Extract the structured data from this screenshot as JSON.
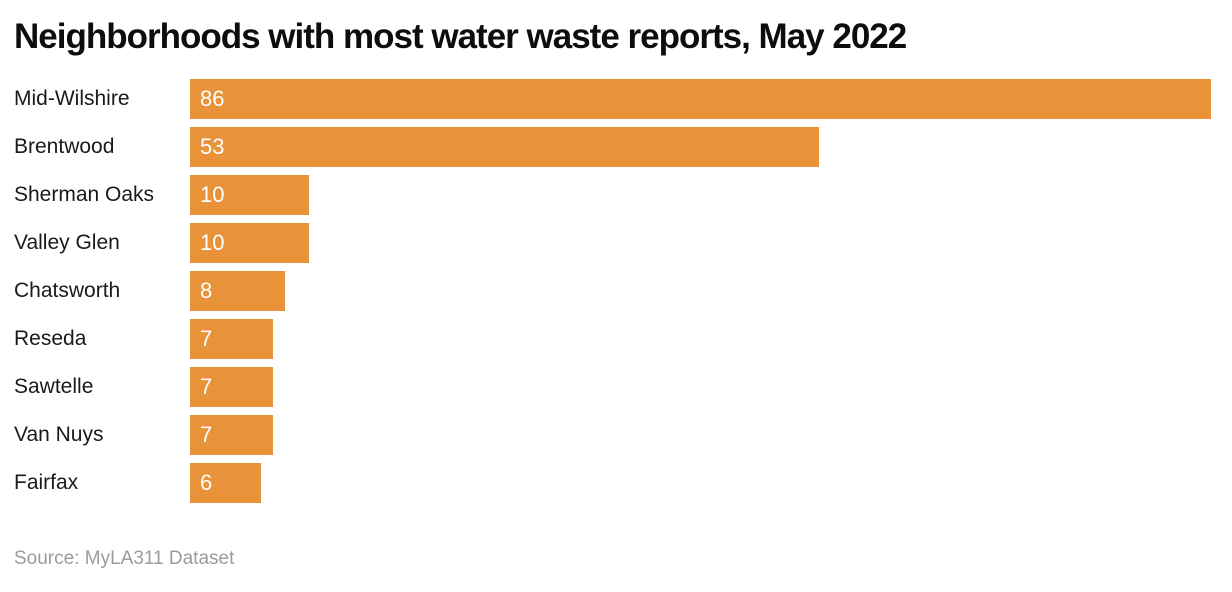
{
  "title": "Neighborhoods with most water waste reports, May 2022",
  "source": "Source: MyLA311 Dataset",
  "colors": {
    "bar": "#e8923a",
    "title_text": "#0d0d0d",
    "category_text": "#1a1a1a",
    "value_text": "#ffffff",
    "source_text": "#9b9b9b",
    "background": "#ffffff"
  },
  "chart_data": {
    "type": "bar",
    "orientation": "horizontal",
    "title": "Neighborhoods with most water waste reports, May 2022",
    "categories": [
      "Mid-Wilshire",
      "Brentwood",
      "Sherman Oaks",
      "Valley Glen",
      "Chatsworth",
      "Reseda",
      "Sawtelle",
      "Van Nuys",
      "Fairfax"
    ],
    "values": [
      86,
      53,
      10,
      10,
      8,
      7,
      7,
      7,
      6
    ],
    "xlabel": "",
    "ylabel": "",
    "xlim": [
      0,
      86
    ],
    "grid": false,
    "legend": false,
    "value_labels": "inside-bar-start",
    "source": "Source: MyLA311 Dataset"
  }
}
